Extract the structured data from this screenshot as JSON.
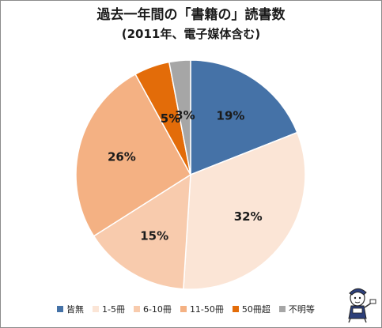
{
  "chart_data": {
    "type": "pie",
    "title": "過去一年間の「書籍の」読書数",
    "subtitle": "(2011年、電子媒体含む)",
    "categories": [
      "皆無",
      "1-5冊",
      "6-10冊",
      "11-50冊",
      "50冊超",
      "不明等"
    ],
    "values": [
      19,
      32,
      15,
      26,
      5,
      3
    ],
    "data_labels": [
      "19%",
      "32%",
      "15%",
      "26%",
      "5%",
      "3%"
    ],
    "colors": [
      "#4572a7",
      "#fbe5d6",
      "#f8cbad",
      "#f4b183",
      "#e36c09",
      "#a6a6a6"
    ],
    "start": "12 o'clock",
    "direction": "clockwise",
    "legend_position": "bottom"
  },
  "mascot_icon": "mascot-illustration-icon"
}
